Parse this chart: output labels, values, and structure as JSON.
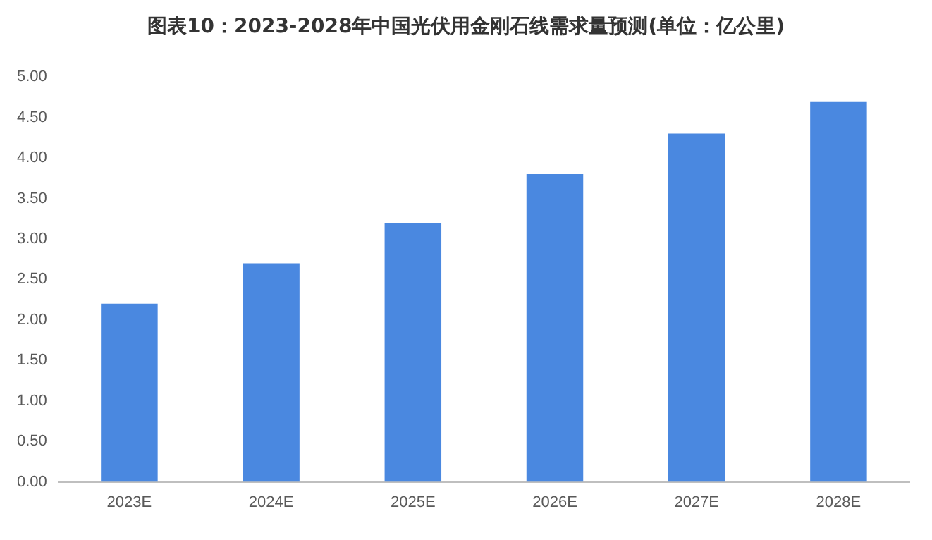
{
  "chart_data": {
    "type": "bar",
    "title": "图表10：2023-2028年中国光伏用金刚石线需求量预测(单位：亿公里)",
    "categories": [
      "2023E",
      "2024E",
      "2025E",
      "2026E",
      "2027E",
      "2028E"
    ],
    "values": [
      2.2,
      2.7,
      3.2,
      3.8,
      4.3,
      4.7
    ],
    "color": "#4a88e0",
    "ylim": [
      0,
      5
    ],
    "yticks": [
      {
        "value": 0,
        "label": "0.00"
      },
      {
        "value": 0.5,
        "label": "0.50"
      },
      {
        "value": 1,
        "label": "1.00"
      },
      {
        "value": 1.5,
        "label": "1.50"
      },
      {
        "value": 2,
        "label": "2.00"
      },
      {
        "value": 2.5,
        "label": "2.50"
      },
      {
        "value": 3,
        "label": "3.00"
      },
      {
        "value": 3.5,
        "label": "3.50"
      },
      {
        "value": 4,
        "label": "4.00"
      },
      {
        "value": 4.5,
        "label": "4.50"
      },
      {
        "value": 5,
        "label": "5.00"
      }
    ],
    "grid": false,
    "legend": false
  }
}
